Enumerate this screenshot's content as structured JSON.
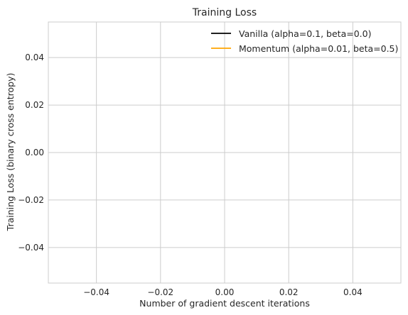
{
  "chart_data": {
    "type": "line",
    "title": "Training Loss",
    "xlabel": "Number of gradient descent iterations",
    "ylabel": "Training Loss (binary cross entropy)",
    "xlim": [
      -0.055,
      0.055
    ],
    "ylim": [
      -0.055,
      0.055
    ],
    "xticks": [
      -0.04,
      -0.02,
      0.0,
      0.02,
      0.04
    ],
    "xtick_labels": [
      "−0.04",
      "−0.02",
      "0.00",
      "0.02",
      "0.04"
    ],
    "yticks": [
      -0.04,
      -0.02,
      0.0,
      0.02,
      0.04
    ],
    "ytick_labels": [
      "−0.04",
      "−0.02",
      "0.00",
      "0.02",
      "0.04"
    ],
    "grid": true,
    "legend_position": "top-right",
    "series": [
      {
        "name": "Vanilla (alpha=0.1, beta=0.0)",
        "color": "#000000",
        "x": [],
        "y": []
      },
      {
        "name": "Momentum (alpha=0.01, beta=0.5)",
        "color": "#ffa500",
        "x": [],
        "y": []
      }
    ]
  }
}
